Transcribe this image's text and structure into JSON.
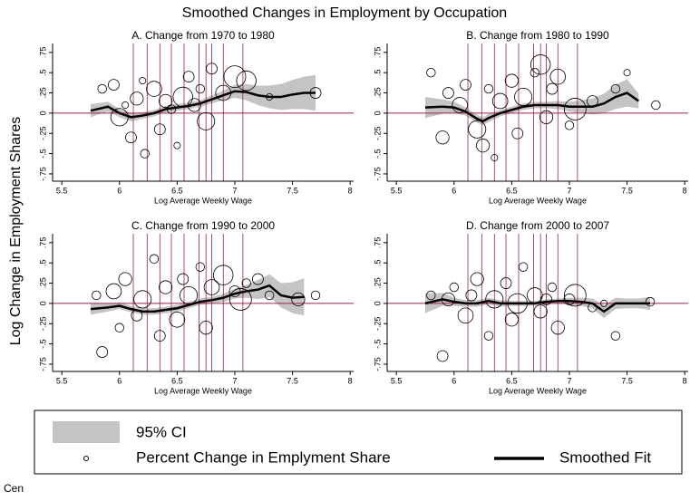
{
  "title": "Smoothed Changes in Employment by Occupation",
  "ylabel": "Log Change in Employment Shares",
  "caption": "Cen",
  "chart_data": [
    {
      "type": "scatter",
      "title": "A. Change from 1970 to 1980",
      "xlabel": "Log Average Weekly Wage",
      "xlim": [
        5.42,
        8.03
      ],
      "ylim": [
        -0.84,
        0.86
      ],
      "xticks": [
        5.5,
        6,
        6.5,
        7,
        7.5,
        8
      ],
      "yticks": [
        {
          "value": -0.75,
          "label": "-.75"
        },
        {
          "value": -0.5,
          "label": "-.5"
        },
        {
          "value": -0.25,
          "label": "-.25"
        },
        0,
        {
          "value": 0.25,
          "label": ".25"
        },
        {
          "value": 0.5,
          "label": ".5"
        },
        {
          "value": 0.75,
          "label": ".75"
        }
      ],
      "vlines": [
        6.12,
        6.24,
        6.35,
        6.45,
        6.56,
        6.69,
        6.75,
        6.8,
        6.9,
        7.07
      ],
      "vline_color": "#a0204a",
      "hline": 0,
      "hline_color": "#a0204a",
      "series": [
        {
          "name": "95% CI",
          "type": "area",
          "color": "#c4c4c4",
          "x": [
            5.75,
            5.9,
            6.0,
            6.1,
            6.2,
            6.3,
            6.4,
            6.5,
            6.6,
            6.7,
            6.8,
            6.9,
            7.0,
            7.1,
            7.2,
            7.3,
            7.4,
            7.5,
            7.6,
            7.7
          ],
          "lower": [
            -0.05,
            0.02,
            -0.05,
            -0.1,
            -0.07,
            -0.04,
            0.01,
            0.03,
            0.05,
            0.08,
            0.12,
            0.16,
            0.19,
            0.16,
            0.1,
            0.06,
            0.04,
            0.05,
            0.05,
            0.03
          ],
          "upper": [
            0.11,
            0.14,
            0.05,
            0.0,
            0.01,
            0.04,
            0.09,
            0.11,
            0.13,
            0.16,
            0.22,
            0.28,
            0.35,
            0.36,
            0.34,
            0.34,
            0.36,
            0.41,
            0.45,
            0.47
          ]
        },
        {
          "name": "Smoothed Fit",
          "type": "line",
          "color": "#000000",
          "x": [
            5.75,
            5.9,
            6.0,
            6.1,
            6.2,
            6.3,
            6.4,
            6.5,
            6.6,
            6.7,
            6.8,
            6.9,
            7.0,
            7.1,
            7.2,
            7.3,
            7.4,
            7.5,
            7.6,
            7.7
          ],
          "values": [
            0.03,
            0.08,
            0.0,
            -0.05,
            -0.03,
            0.0,
            0.05,
            0.07,
            0.09,
            0.12,
            0.17,
            0.22,
            0.27,
            0.26,
            0.22,
            0.2,
            0.2,
            0.23,
            0.25,
            0.25
          ]
        },
        {
          "name": "Percent Change in Emplyment Share",
          "type": "scatter",
          "color": "#000000",
          "x": [
            5.85,
            5.95,
            6.0,
            6.05,
            6.1,
            6.15,
            6.2,
            6.22,
            6.3,
            6.35,
            6.4,
            6.45,
            6.5,
            6.55,
            6.6,
            6.65,
            6.7,
            6.75,
            6.8,
            6.9,
            7.0,
            7.1,
            7.3,
            7.7
          ],
          "values": [
            0.3,
            0.35,
            -0.05,
            0.1,
            -0.3,
            0.18,
            0.4,
            -0.5,
            0.3,
            -0.2,
            0.15,
            0.05,
            -0.4,
            0.2,
            0.45,
            0.1,
            0.3,
            -0.1,
            0.55,
            0.25,
            0.45,
            0.4,
            0.2,
            0.25
          ],
          "sizes": [
            4,
            5,
            8,
            3,
            5,
            6,
            3,
            4,
            7,
            5,
            6,
            4,
            3,
            9,
            5,
            6,
            4,
            8,
            5,
            7,
            10,
            9,
            3,
            5
          ]
        }
      ]
    },
    {
      "type": "scatter",
      "title": "B. Change from 1980 to 1990",
      "xlabel": "Log Average Weekly Wage",
      "xlim": [
        5.42,
        8.03
      ],
      "ylim": [
        -0.84,
        0.86
      ],
      "xticks": [
        5.5,
        6,
        6.5,
        7,
        7.5,
        8
      ],
      "yticks": [
        {
          "value": -0.75,
          "label": "-.75"
        },
        {
          "value": -0.5,
          "label": "-.5"
        },
        {
          "value": -0.25,
          "label": "-.25"
        },
        0,
        {
          "value": 0.25,
          "label": ".25"
        },
        {
          "value": 0.5,
          "label": ".5"
        },
        {
          "value": 0.75,
          "label": ".75"
        }
      ],
      "vlines": [
        6.12,
        6.24,
        6.35,
        6.45,
        6.56,
        6.69,
        6.75,
        6.8,
        6.9,
        7.07
      ],
      "vline_color": "#a0204a",
      "hline": 0,
      "hline_color": "#a0204a",
      "series": [
        {
          "name": "95% CI",
          "type": "area",
          "color": "#c4c4c4",
          "x": [
            5.75,
            5.9,
            6.0,
            6.1,
            6.2,
            6.25,
            6.3,
            6.4,
            6.5,
            6.6,
            6.7,
            6.8,
            6.9,
            7.0,
            7.1,
            7.2,
            7.3,
            7.4,
            7.5,
            7.6
          ],
          "lower": [
            -0.06,
            -0.01,
            0.0,
            -0.03,
            -0.12,
            -0.15,
            -0.11,
            -0.04,
            0.0,
            0.04,
            0.06,
            0.06,
            0.05,
            0.02,
            0.0,
            -0.02,
            0.0,
            0.05,
            0.08,
            0.06
          ],
          "upper": [
            0.2,
            0.17,
            0.14,
            0.07,
            -0.02,
            -0.05,
            -0.01,
            0.04,
            0.08,
            0.12,
            0.14,
            0.14,
            0.15,
            0.14,
            0.16,
            0.18,
            0.24,
            0.35,
            0.42,
            0.24
          ]
        },
        {
          "name": "Smoothed Fit",
          "type": "line",
          "color": "#000000",
          "x": [
            5.75,
            5.9,
            6.0,
            6.1,
            6.2,
            6.25,
            6.3,
            6.4,
            6.5,
            6.6,
            6.7,
            6.8,
            6.9,
            7.0,
            7.1,
            7.2,
            7.3,
            7.4,
            7.5,
            7.6
          ],
          "values": [
            0.07,
            0.08,
            0.07,
            0.02,
            -0.07,
            -0.1,
            -0.06,
            0.0,
            0.04,
            0.08,
            0.1,
            0.1,
            0.1,
            0.08,
            0.08,
            0.08,
            0.12,
            0.2,
            0.25,
            0.15
          ]
        },
        {
          "name": "Percent Change in Emplyment Share",
          "type": "scatter",
          "color": "#000000",
          "x": [
            5.8,
            5.9,
            5.95,
            6.05,
            6.1,
            6.2,
            6.25,
            6.3,
            6.35,
            6.4,
            6.5,
            6.55,
            6.6,
            6.7,
            6.75,
            6.8,
            6.85,
            6.9,
            7.0,
            7.05,
            7.2,
            7.4,
            7.5,
            7.75
          ],
          "values": [
            0.5,
            -0.3,
            0.25,
            0.1,
            0.35,
            -0.2,
            -0.4,
            0.3,
            -0.55,
            0.15,
            0.4,
            -0.25,
            0.2,
            0.5,
            0.6,
            -0.05,
            0.3,
            0.45,
            -0.15,
            0.05,
            0.15,
            0.3,
            0.5,
            0.1
          ],
          "sizes": [
            4,
            6,
            5,
            7,
            5,
            8,
            6,
            4,
            3,
            7,
            6,
            5,
            8,
            4,
            9,
            6,
            5,
            7,
            4,
            10,
            5,
            4,
            3,
            4
          ]
        }
      ]
    },
    {
      "type": "scatter",
      "title": "C. Change from 1990 to 2000",
      "xlabel": "Log Average Weekly Wage",
      "xlim": [
        5.42,
        8.03
      ],
      "ylim": [
        -0.84,
        0.86
      ],
      "xticks": [
        5.5,
        6,
        6.5,
        7,
        7.5,
        8
      ],
      "yticks": [
        {
          "value": -0.75,
          "label": "-.75"
        },
        {
          "value": -0.5,
          "label": "-.5"
        },
        {
          "value": -0.25,
          "label": "-.25"
        },
        0,
        {
          "value": 0.25,
          "label": ".25"
        },
        {
          "value": 0.5,
          "label": ".5"
        },
        {
          "value": 0.75,
          "label": ".75"
        }
      ],
      "vlines": [
        6.12,
        6.24,
        6.35,
        6.45,
        6.56,
        6.69,
        6.75,
        6.8,
        6.9,
        7.07
      ],
      "vline_color": "#a0204a",
      "hline": 0,
      "hline_color": "#a0204a",
      "series": [
        {
          "name": "95% CI",
          "type": "area",
          "color": "#c4c4c4",
          "x": [
            5.75,
            5.9,
            6.0,
            6.1,
            6.2,
            6.3,
            6.4,
            6.5,
            6.6,
            6.7,
            6.8,
            6.9,
            7.0,
            7.1,
            7.2,
            7.3,
            7.4,
            7.5,
            7.6
          ],
          "lower": [
            -0.14,
            -0.1,
            -0.07,
            -0.11,
            -0.14,
            -0.14,
            -0.12,
            -0.1,
            -0.06,
            -0.02,
            0.0,
            0.02,
            0.06,
            0.07,
            0.05,
            0.08,
            -0.05,
            -0.12,
            -0.15
          ],
          "upper": [
            0.0,
            0.0,
            0.01,
            -0.03,
            -0.06,
            -0.06,
            -0.04,
            -0.02,
            0.02,
            0.06,
            0.08,
            0.12,
            0.18,
            0.23,
            0.29,
            0.36,
            0.25,
            0.26,
            0.31
          ]
        },
        {
          "name": "Smoothed Fit",
          "type": "line",
          "color": "#000000",
          "x": [
            5.75,
            5.9,
            6.0,
            6.1,
            6.2,
            6.3,
            6.4,
            6.5,
            6.6,
            6.7,
            6.8,
            6.9,
            7.0,
            7.1,
            7.2,
            7.3,
            7.4,
            7.5,
            7.6
          ],
          "values": [
            -0.07,
            -0.05,
            -0.03,
            -0.07,
            -0.1,
            -0.1,
            -0.08,
            -0.06,
            -0.02,
            0.02,
            0.04,
            0.07,
            0.12,
            0.15,
            0.17,
            0.22,
            0.1,
            0.07,
            0.08
          ]
        },
        {
          "name": "Percent Change in Emplyment Share",
          "type": "scatter",
          "color": "#000000",
          "x": [
            5.8,
            5.85,
            5.95,
            6.0,
            6.05,
            6.15,
            6.2,
            6.3,
            6.35,
            6.4,
            6.5,
            6.55,
            6.6,
            6.7,
            6.75,
            6.8,
            6.9,
            7.0,
            7.05,
            7.1,
            7.2,
            7.3,
            7.55,
            7.7
          ],
          "values": [
            0.1,
            -0.6,
            0.15,
            -0.3,
            0.3,
            -0.15,
            0.05,
            0.55,
            -0.4,
            0.2,
            -0.2,
            0.3,
            0.1,
            0.45,
            -0.3,
            0.2,
            0.35,
            0.15,
            0.05,
            0.25,
            0.3,
            0.1,
            0.05,
            0.1
          ],
          "sizes": [
            4,
            5,
            7,
            4,
            6,
            5,
            8,
            4,
            5,
            6,
            7,
            5,
            8,
            4,
            6,
            7,
            9,
            5,
            10,
            4,
            5,
            4,
            6,
            4
          ]
        }
      ]
    },
    {
      "type": "scatter",
      "title": "D. Change from 2000 to 2007",
      "xlabel": "Log Average Weekly Wage",
      "xlim": [
        5.42,
        8.03
      ],
      "ylim": [
        -0.84,
        0.86
      ],
      "xticks": [
        5.5,
        6,
        6.5,
        7,
        7.5,
        8
      ],
      "yticks": [
        {
          "value": -0.75,
          "label": "-.75"
        },
        {
          "value": -0.5,
          "label": "-.5"
        },
        {
          "value": -0.25,
          "label": "-.25"
        },
        0,
        {
          "value": 0.25,
          "label": ".25"
        },
        {
          "value": 0.5,
          "label": ".5"
        },
        {
          "value": 0.75,
          "label": ".75"
        }
      ],
      "vlines": [
        6.12,
        6.24,
        6.35,
        6.45,
        6.56,
        6.69,
        6.75,
        6.8,
        6.9,
        7.07
      ],
      "vline_color": "#a0204a",
      "hline": 0,
      "hline_color": "#a0204a",
      "series": [
        {
          "name": "95% CI",
          "type": "area",
          "color": "#c4c4c4",
          "x": [
            5.75,
            5.9,
            6.0,
            6.1,
            6.2,
            6.3,
            6.4,
            6.5,
            6.6,
            6.7,
            6.8,
            6.9,
            7.0,
            7.1,
            7.2,
            7.3,
            7.4,
            7.5,
            7.6,
            7.7
          ],
          "lower": [
            -0.12,
            -0.03,
            -0.03,
            -0.04,
            -0.04,
            -0.01,
            -0.04,
            -0.03,
            -0.03,
            -0.03,
            -0.01,
            0.0,
            -0.01,
            -0.03,
            -0.06,
            -0.18,
            -0.07,
            -0.06,
            -0.06,
            -0.08
          ],
          "upper": [
            0.12,
            0.13,
            0.07,
            0.04,
            0.04,
            0.07,
            0.04,
            0.03,
            0.03,
            0.03,
            0.05,
            0.06,
            0.07,
            0.07,
            0.06,
            -0.02,
            0.07,
            0.06,
            0.06,
            0.08
          ]
        },
        {
          "name": "Smoothed Fit",
          "type": "line",
          "color": "#000000",
          "x": [
            5.75,
            5.9,
            6.0,
            6.1,
            6.2,
            6.3,
            6.4,
            6.5,
            6.6,
            6.7,
            6.8,
            6.9,
            7.0,
            7.1,
            7.2,
            7.3,
            7.4,
            7.5,
            7.6,
            7.7
          ],
          "values": [
            0.0,
            0.05,
            0.02,
            0.0,
            0.0,
            0.03,
            0.0,
            0.0,
            0.0,
            0.0,
            0.02,
            0.03,
            0.03,
            0.02,
            0.0,
            -0.1,
            0.0,
            0.0,
            0.0,
            0.0
          ]
        },
        {
          "name": "Percent Change in Emplyment Share",
          "type": "scatter",
          "color": "#000000",
          "x": [
            5.8,
            5.9,
            5.95,
            6.0,
            6.1,
            6.15,
            6.2,
            6.3,
            6.35,
            6.45,
            6.5,
            6.55,
            6.6,
            6.7,
            6.75,
            6.8,
            6.85,
            6.9,
            7.0,
            7.05,
            7.2,
            7.3,
            7.4,
            7.7
          ],
          "values": [
            0.1,
            -0.65,
            0.05,
            0.2,
            -0.15,
            0.1,
            0.3,
            -0.4,
            0.05,
            0.25,
            -0.2,
            0.0,
            0.45,
            0.1,
            -0.1,
            0.05,
            0.2,
            -0.3,
            0.05,
            0.1,
            -0.05,
            0.0,
            -0.4,
            0.02
          ],
          "sizes": [
            4,
            5,
            6,
            4,
            7,
            5,
            6,
            4,
            8,
            5,
            6,
            9,
            4,
            7,
            6,
            5,
            4,
            6,
            5,
            10,
            4,
            3,
            4,
            4
          ]
        }
      ]
    }
  ]
}
